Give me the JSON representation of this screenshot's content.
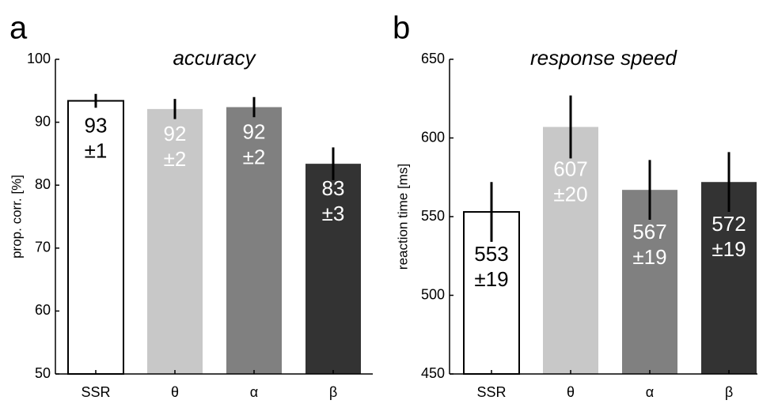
{
  "chart_data": [
    {
      "type": "bar",
      "panel": "a",
      "title": "accuracy",
      "ylabel": "prop. corr. [%]",
      "categories": [
        "SSR",
        "θ",
        "α",
        "β"
      ],
      "values": [
        93.4,
        92.1,
        92.4,
        83.4
      ],
      "errors": [
        1.1,
        1.6,
        1.6,
        2.6
      ],
      "error_labels": [
        "±1",
        "±2",
        "±2",
        "±3"
      ],
      "value_labels": [
        "93",
        "92",
        "92",
        "83"
      ],
      "colors": [
        "#ffffff",
        "#c8c8c8",
        "#808080",
        "#333333"
      ],
      "label_colors": [
        "#000000",
        "#ffffff",
        "#ffffff",
        "#ffffff"
      ],
      "ylim": [
        50,
        100
      ],
      "yticks": [
        50,
        60,
        70,
        80,
        90,
        100
      ]
    },
    {
      "type": "bar",
      "panel": "b",
      "title": "response speed",
      "ylabel": "reaction time [ms]",
      "categories": [
        "SSR",
        "θ",
        "α",
        "β"
      ],
      "values": [
        553,
        607,
        567,
        572
      ],
      "errors": [
        19,
        20,
        19,
        19
      ],
      "error_labels": [
        "±19",
        "±20",
        "±19",
        "±19"
      ],
      "colors": [
        "#ffffff",
        "#c8c8c8",
        "#808080",
        "#333333"
      ],
      "label_colors": [
        "#000000",
        "#ffffff",
        "#ffffff",
        "#ffffff"
      ],
      "ylim": [
        450,
        650
      ],
      "yticks": [
        450,
        500,
        550,
        600,
        650
      ]
    }
  ]
}
